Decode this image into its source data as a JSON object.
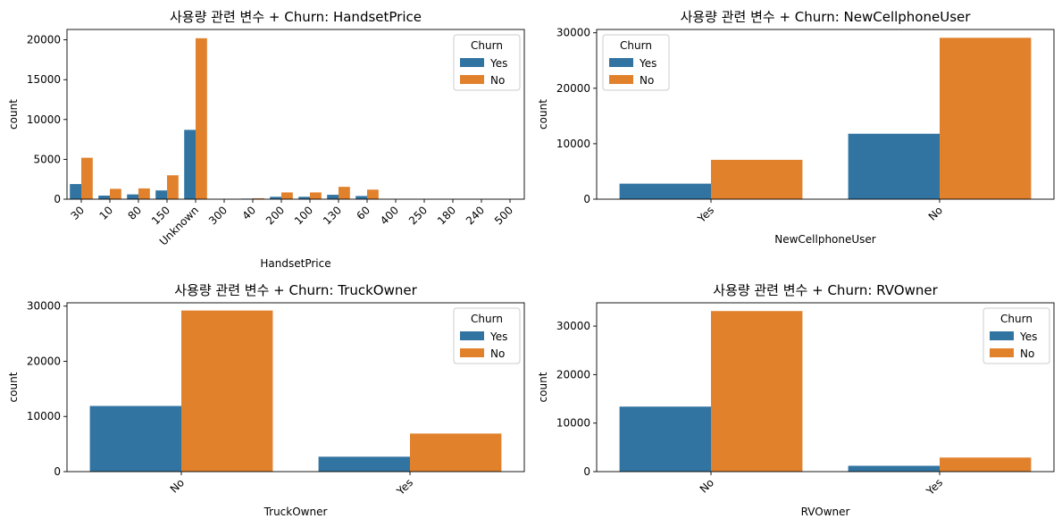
{
  "colors": {
    "Yes": "#3274a1",
    "No": "#e1812c"
  },
  "chart_data": [
    {
      "type": "bar",
      "title": "사용량 관련 변수 + Churn: HandsetPrice",
      "xlabel": "HandsetPrice",
      "ylabel": "count",
      "categories": [
        "30",
        "10",
        "80",
        "150",
        "Unknown",
        "300",
        "40",
        "200",
        "100",
        "130",
        "60",
        "400",
        "250",
        "180",
        "240",
        "500"
      ],
      "series": [
        {
          "name": "Yes",
          "values": [
            1900,
            450,
            600,
            1100,
            8700,
            10,
            70,
            300,
            300,
            550,
            400,
            5,
            5,
            5,
            5,
            5
          ]
        },
        {
          "name": "No",
          "values": [
            5200,
            1300,
            1350,
            3000,
            20200,
            30,
            120,
            850,
            850,
            1550,
            1200,
            10,
            10,
            10,
            10,
            10
          ]
        }
      ],
      "ylim": [
        0,
        21300
      ],
      "yticks": [
        0,
        5000,
        10000,
        15000,
        20000
      ],
      "legend": {
        "title": "Churn",
        "placement": "top-right"
      },
      "grid": false
    },
    {
      "type": "bar",
      "title": "사용량 관련 변수 + Churn: NewCellphoneUser",
      "xlabel": "NewCellphoneUser",
      "ylabel": "count",
      "categories": [
        "Yes",
        "No"
      ],
      "series": [
        {
          "name": "Yes",
          "values": [
            2800,
            11800
          ]
        },
        {
          "name": "No",
          "values": [
            7100,
            29100
          ]
        }
      ],
      "ylim": [
        0,
        30600
      ],
      "yticks": [
        0,
        10000,
        20000,
        30000
      ],
      "legend": {
        "title": "Churn",
        "placement": "top-left"
      },
      "grid": false
    },
    {
      "type": "bar",
      "title": "사용량 관련 변수 + Churn: TruckOwner",
      "xlabel": "TruckOwner",
      "ylabel": "count",
      "categories": [
        "No",
        "Yes"
      ],
      "series": [
        {
          "name": "Yes",
          "values": [
            11900,
            2700
          ]
        },
        {
          "name": "No",
          "values": [
            29200,
            6900
          ]
        }
      ],
      "ylim": [
        0,
        30600
      ],
      "yticks": [
        0,
        10000,
        20000,
        30000
      ],
      "legend": {
        "title": "Churn",
        "placement": "top-right"
      },
      "grid": false
    },
    {
      "type": "bar",
      "title": "사용량 관련 변수 + Churn: RVOwner",
      "xlabel": "RVOwner",
      "ylabel": "count",
      "categories": [
        "No",
        "Yes"
      ],
      "series": [
        {
          "name": "Yes",
          "values": [
            13400,
            1200
          ]
        },
        {
          "name": "No",
          "values": [
            33100,
            2900
          ]
        }
      ],
      "ylim": [
        0,
        34800
      ],
      "yticks": [
        0,
        10000,
        20000,
        30000
      ],
      "legend": {
        "title": "Churn",
        "placement": "top-right"
      },
      "grid": false
    }
  ]
}
